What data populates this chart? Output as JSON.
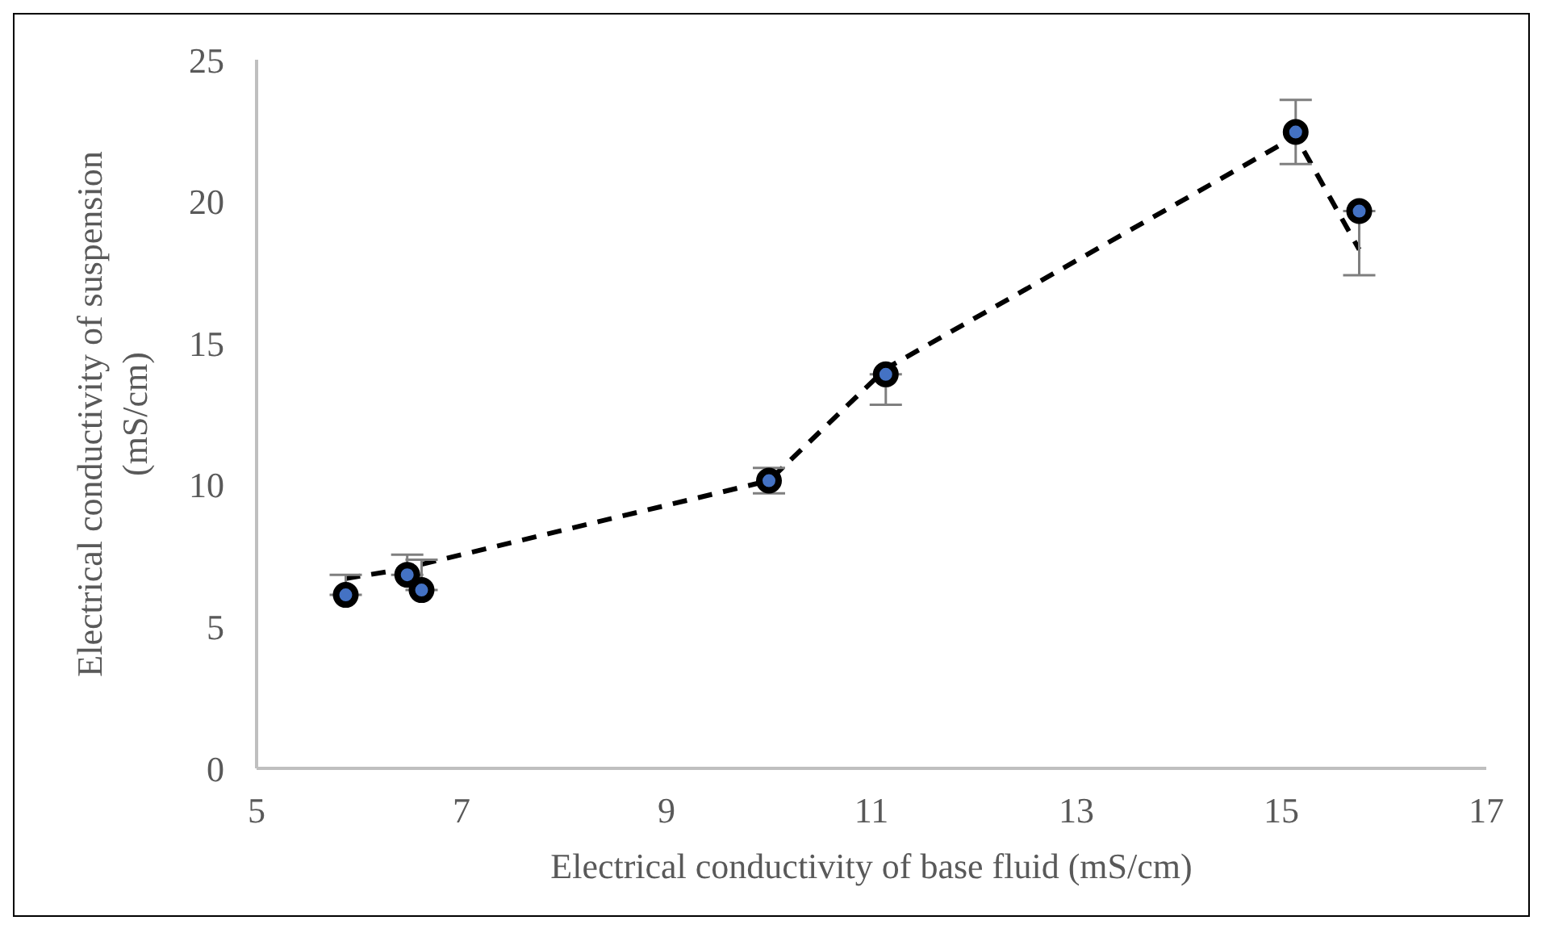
{
  "chart_data": {
    "type": "scatter",
    "xlabel": "Electrical conductivity of base fluid (mS/cm)",
    "ylabel": "Electrical conductivity of suspension (mS/cm)",
    "xlim": [
      5,
      17
    ],
    "xticks": [
      5,
      7,
      9,
      11,
      13,
      15,
      17
    ],
    "ylim": [
      0,
      25
    ],
    "yticks": [
      0,
      5,
      10,
      15,
      20,
      25
    ],
    "grid": false,
    "legend": false,
    "series": [
      {
        "color": "#4472c4",
        "marker": "circle",
        "x": [
          5.87,
          6.47,
          6.61,
          10.0,
          11.14,
          15.14,
          15.76
        ],
        "values": [
          6.12,
          6.83,
          6.29,
          10.15,
          13.9,
          22.45,
          19.66
        ],
        "errors": [
          [
            6.12,
            6.83
          ],
          [
            6.83,
            7.54
          ],
          [
            6.29,
            7.36
          ],
          0.45,
          [
            12.83,
            13.9
          ],
          1.13,
          [
            17.4,
            19.66
          ]
        ]
      },
      {
        "type": "line",
        "color": "#000000",
        "marker": "none",
        "line_style": "dashed",
        "x": [
          5.87,
          6.47,
          6.61,
          10.0,
          11.14,
          15.14,
          15.76
        ],
        "values": [
          6.7,
          7.05,
          7.2,
          10.15,
          14.1,
          22.3,
          18.3
        ]
      }
    ]
  }
}
